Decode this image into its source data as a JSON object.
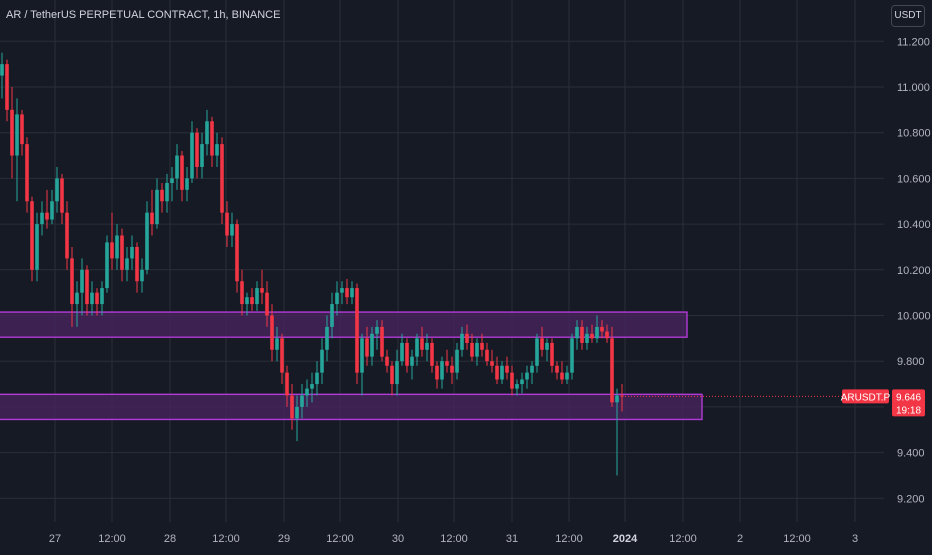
{
  "header": {
    "title": "AR / TetherUS PERPETUAL CONTRACT, 1h, BINANCE",
    "currency": "USDT"
  },
  "price_tag": {
    "symbol": "ARUSDT.P",
    "price": "9.646",
    "countdown": "19:18",
    "color": "#f23645"
  },
  "colors": {
    "background": "#161a25",
    "grid": "#2a2e39",
    "up": "#26a69a",
    "down": "#f23645",
    "zone_fill": "#4a2460",
    "zone_stroke": "#b23ad6",
    "axis_text": "#b2b5be"
  },
  "chart_data": {
    "type": "candlestick",
    "title": "AR / TetherUS PERPETUAL CONTRACT, 1h, BINANCE",
    "y_ticks": [
      "11.200",
      "11.000",
      "10.800",
      "10.600",
      "10.400",
      "10.200",
      "10.000",
      "9.800",
      "9.600",
      "9.400",
      "9.200"
    ],
    "ylim": [
      9.05,
      11.3
    ],
    "x_ticks": [
      "27",
      "12:00",
      "28",
      "12:00",
      "29",
      "12:00",
      "30",
      "12:00",
      "31",
      "12:00",
      "2024",
      "12:00",
      "2",
      "12:00",
      "3"
    ],
    "last_price": 9.646,
    "zones": [
      {
        "top": 10.015,
        "bottom": 9.905,
        "from_index": 0,
        "to_index": 137
      },
      {
        "top": 9.655,
        "bottom": 9.545,
        "from_index": 0,
        "to_index": 140
      }
    ],
    "candles": [
      [
        11.05,
        11.15,
        10.95,
        11.1
      ],
      [
        11.1,
        11.12,
        10.85,
        10.9
      ],
      [
        10.9,
        11.0,
        10.6,
        10.7
      ],
      [
        10.7,
        10.95,
        10.5,
        10.88
      ],
      [
        10.88,
        10.9,
        10.7,
        10.75
      ],
      [
        10.75,
        10.78,
        10.45,
        10.5
      ],
      [
        10.5,
        10.52,
        10.15,
        10.2
      ],
      [
        10.2,
        10.45,
        10.15,
        10.4
      ],
      [
        10.4,
        10.5,
        10.35,
        10.45
      ],
      [
        10.45,
        10.55,
        10.38,
        10.42
      ],
      [
        10.42,
        10.55,
        10.4,
        10.5
      ],
      [
        10.5,
        10.65,
        10.45,
        10.6
      ],
      [
        10.6,
        10.62,
        10.4,
        10.45
      ],
      [
        10.45,
        10.5,
        10.2,
        10.25
      ],
      [
        10.25,
        10.3,
        9.95,
        10.05
      ],
      [
        10.05,
        10.15,
        9.95,
        10.1
      ],
      [
        10.1,
        10.25,
        10.0,
        10.2
      ],
      [
        10.2,
        10.22,
        10.0,
        10.05
      ],
      [
        10.05,
        10.15,
        10.0,
        10.1
      ],
      [
        10.1,
        10.12,
        10.0,
        10.05
      ],
      [
        10.05,
        10.15,
        10.0,
        10.12
      ],
      [
        10.12,
        10.35,
        10.1,
        10.32
      ],
      [
        10.32,
        10.45,
        10.2,
        10.25
      ],
      [
        10.25,
        10.4,
        10.2,
        10.35
      ],
      [
        10.35,
        10.38,
        10.15,
        10.2
      ],
      [
        10.2,
        10.3,
        10.15,
        10.25
      ],
      [
        10.25,
        10.35,
        10.2,
        10.3
      ],
      [
        10.3,
        10.32,
        10.1,
        10.15
      ],
      [
        10.15,
        10.25,
        10.1,
        10.2
      ],
      [
        10.2,
        10.5,
        10.18,
        10.45
      ],
      [
        10.45,
        10.55,
        10.35,
        10.4
      ],
      [
        10.4,
        10.6,
        10.38,
        10.55
      ],
      [
        10.55,
        10.58,
        10.45,
        10.5
      ],
      [
        10.5,
        10.62,
        10.45,
        10.58
      ],
      [
        10.58,
        10.65,
        10.5,
        10.6
      ],
      [
        10.6,
        10.75,
        10.55,
        10.7
      ],
      [
        10.7,
        10.72,
        10.5,
        10.55
      ],
      [
        10.55,
        10.65,
        10.5,
        10.6
      ],
      [
        10.6,
        10.85,
        10.58,
        10.8
      ],
      [
        10.8,
        10.82,
        10.6,
        10.65
      ],
      [
        10.65,
        10.8,
        10.6,
        10.75
      ],
      [
        10.75,
        10.9,
        10.7,
        10.85
      ],
      [
        10.85,
        10.87,
        10.65,
        10.7
      ],
      [
        10.7,
        10.8,
        10.65,
        10.75
      ],
      [
        10.75,
        10.78,
        10.4,
        10.45
      ],
      [
        10.45,
        10.5,
        10.3,
        10.35
      ],
      [
        10.35,
        10.45,
        10.3,
        10.4
      ],
      [
        10.4,
        10.42,
        10.1,
        10.15
      ],
      [
        10.15,
        10.2,
        10.0,
        10.05
      ],
      [
        10.05,
        10.1,
        10.0,
        10.08
      ],
      [
        10.08,
        10.12,
        10.02,
        10.05
      ],
      [
        10.05,
        10.15,
        10.02,
        10.12
      ],
      [
        10.12,
        10.2,
        10.05,
        10.1
      ],
      [
        10.1,
        10.15,
        9.95,
        10.0
      ],
      [
        10.0,
        10.05,
        9.8,
        9.85
      ],
      [
        9.85,
        9.95,
        9.8,
        9.9
      ],
      [
        9.9,
        9.92,
        9.7,
        9.75
      ],
      [
        9.75,
        9.78,
        9.6,
        9.65
      ],
      [
        9.65,
        9.7,
        9.5,
        9.55
      ],
      [
        9.55,
        9.65,
        9.45,
        9.6
      ],
      [
        9.6,
        9.7,
        9.55,
        9.65
      ],
      [
        9.65,
        9.72,
        9.6,
        9.68
      ],
      [
        9.68,
        9.75,
        9.62,
        9.7
      ],
      [
        9.7,
        9.8,
        9.65,
        9.75
      ],
      [
        9.75,
        9.9,
        9.7,
        9.85
      ],
      [
        9.85,
        10.0,
        9.8,
        9.95
      ],
      [
        9.95,
        10.1,
        9.9,
        10.05
      ],
      [
        10.05,
        10.15,
        10.0,
        10.1
      ],
      [
        10.1,
        10.15,
        10.05,
        10.12
      ],
      [
        10.12,
        10.16,
        10.05,
        10.08
      ],
      [
        10.08,
        10.15,
        10.05,
        10.12
      ],
      [
        10.12,
        10.14,
        9.7,
        9.75
      ],
      [
        9.75,
        9.92,
        9.65,
        9.9
      ],
      [
        9.9,
        9.95,
        9.78,
        9.82
      ],
      [
        9.82,
        9.95,
        9.78,
        9.92
      ],
      [
        9.92,
        9.98,
        9.85,
        9.95
      ],
      [
        9.95,
        9.98,
        9.8,
        9.82
      ],
      [
        9.82,
        9.85,
        9.75,
        9.78
      ],
      [
        9.78,
        9.8,
        9.65,
        9.7
      ],
      [
        9.7,
        9.85,
        9.65,
        9.8
      ],
      [
        9.8,
        9.92,
        9.78,
        9.88
      ],
      [
        9.88,
        9.9,
        9.75,
        9.78
      ],
      [
        9.78,
        9.85,
        9.72,
        9.82
      ],
      [
        9.82,
        9.92,
        9.78,
        9.9
      ],
      [
        9.9,
        9.95,
        9.82,
        9.85
      ],
      [
        9.85,
        9.92,
        9.8,
        9.88
      ],
      [
        9.88,
        9.9,
        9.75,
        9.78
      ],
      [
        9.78,
        9.8,
        9.68,
        9.72
      ],
      [
        9.72,
        9.82,
        9.68,
        9.8
      ],
      [
        9.8,
        9.85,
        9.75,
        9.78
      ],
      [
        9.78,
        9.82,
        9.7,
        9.75
      ],
      [
        9.75,
        9.88,
        9.72,
        9.85
      ],
      [
        9.85,
        9.95,
        9.82,
        9.92
      ],
      [
        9.92,
        9.96,
        9.85,
        9.88
      ],
      [
        9.88,
        9.92,
        9.8,
        9.82
      ],
      [
        9.82,
        9.9,
        9.78,
        9.88
      ],
      [
        9.88,
        9.92,
        9.82,
        9.85
      ],
      [
        9.85,
        9.88,
        9.78,
        9.8
      ],
      [
        9.8,
        9.85,
        9.75,
        9.78
      ],
      [
        9.78,
        9.82,
        9.7,
        9.72
      ],
      [
        9.72,
        9.8,
        9.7,
        9.78
      ],
      [
        9.78,
        9.82,
        9.72,
        9.75
      ],
      [
        9.75,
        9.78,
        9.65,
        9.68
      ],
      [
        9.68,
        9.72,
        9.65,
        9.7
      ],
      [
        9.7,
        9.75,
        9.66,
        9.72
      ],
      [
        9.72,
        9.78,
        9.68,
        9.75
      ],
      [
        9.75,
        9.8,
        9.7,
        9.78
      ],
      [
        9.78,
        9.92,
        9.75,
        9.9
      ],
      [
        9.9,
        9.95,
        9.82,
        9.85
      ],
      [
        9.85,
        9.9,
        9.8,
        9.88
      ],
      [
        9.88,
        9.9,
        9.75,
        9.78
      ],
      [
        9.78,
        9.8,
        9.72,
        9.75
      ],
      [
        9.75,
        9.8,
        9.7,
        9.72
      ],
      [
        9.72,
        9.78,
        9.7,
        9.75
      ],
      [
        9.75,
        9.92,
        9.72,
        9.9
      ],
      [
        9.9,
        9.98,
        9.85,
        9.95
      ],
      [
        9.95,
        9.98,
        9.85,
        9.88
      ],
      [
        9.88,
        9.95,
        9.85,
        9.92
      ],
      [
        9.92,
        9.96,
        9.88,
        9.9
      ],
      [
        9.9,
        10.0,
        9.88,
        9.95
      ],
      [
        9.95,
        9.98,
        9.9,
        9.93
      ],
      [
        9.93,
        9.96,
        9.88,
        9.9
      ],
      [
        9.9,
        9.95,
        9.6,
        9.62
      ],
      [
        9.62,
        9.68,
        9.3,
        9.65
      ],
      [
        9.65,
        9.7,
        9.58,
        9.646
      ]
    ]
  }
}
